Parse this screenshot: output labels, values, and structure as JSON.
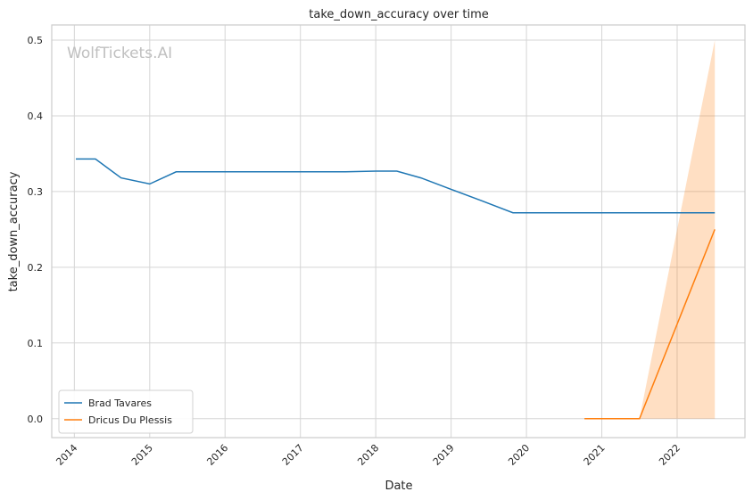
{
  "watermark": "WolfTickets.AI",
  "chart_data": {
    "type": "line",
    "title": "take_down_accuracy over time",
    "xlabel": "Date",
    "ylabel": "take_down_accuracy",
    "xlim": [
      2013.7,
      2022.9
    ],
    "ylim": [
      -0.025,
      0.52
    ],
    "x_ticks": [
      {
        "value": 2014,
        "label": "2014"
      },
      {
        "value": 2015,
        "label": "2015"
      },
      {
        "value": 2016,
        "label": "2016"
      },
      {
        "value": 2017,
        "label": "2017"
      },
      {
        "value": 2018,
        "label": "2018"
      },
      {
        "value": 2019,
        "label": "2019"
      },
      {
        "value": 2020,
        "label": "2020"
      },
      {
        "value": 2021,
        "label": "2021"
      },
      {
        "value": 2022,
        "label": "2022"
      }
    ],
    "y_ticks": [
      {
        "value": 0.0,
        "label": "0.0"
      },
      {
        "value": 0.1,
        "label": "0.1"
      },
      {
        "value": 0.2,
        "label": "0.2"
      },
      {
        "value": 0.3,
        "label": "0.3"
      },
      {
        "value": 0.4,
        "label": "0.4"
      },
      {
        "value": 0.5,
        "label": "0.5"
      }
    ],
    "grid": true,
    "legend_position": "lower-left",
    "series": [
      {
        "name": "Brad Tavares",
        "color": "#1f77b4",
        "x": [
          2014.02,
          2014.28,
          2014.62,
          2015.0,
          2015.35,
          2016.0,
          2017.0,
          2017.6,
          2018.0,
          2018.28,
          2018.6,
          2019.0,
          2019.4,
          2019.82,
          2020.5,
          2021.0,
          2021.5,
          2022.5
        ],
        "y": [
          0.343,
          0.343,
          0.318,
          0.31,
          0.326,
          0.326,
          0.326,
          0.326,
          0.327,
          0.327,
          0.318,
          0.303,
          0.288,
          0.272,
          0.272,
          0.272,
          0.272,
          0.272
        ]
      },
      {
        "name": "Dricus Du Plessis",
        "color": "#ff7f0e",
        "x": [
          2020.77,
          2021.0,
          2021.25,
          2021.5,
          2022.0,
          2022.5
        ],
        "y": [
          0.0,
          0.0,
          0.0,
          0.0,
          0.125,
          0.25
        ],
        "band": {
          "x": [
            2021.5,
            2022.0,
            2022.5
          ],
          "lower": [
            0.0,
            0.0,
            0.0
          ],
          "upper": [
            0.0,
            0.25,
            0.5
          ],
          "color": "#ff7f0e",
          "opacity": 0.25
        }
      }
    ]
  }
}
